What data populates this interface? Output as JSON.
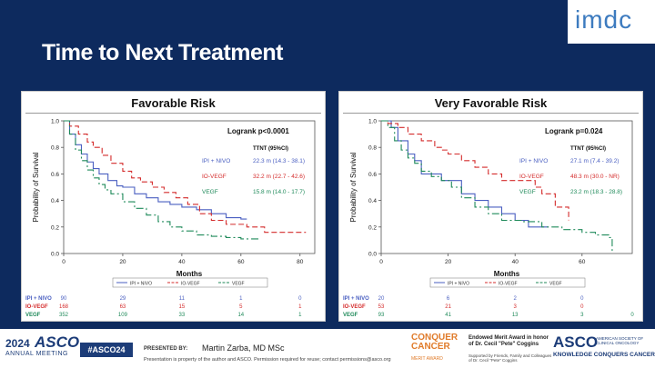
{
  "logo": "imdc",
  "slide_title": "Time to Next Treatment",
  "footer": {
    "year": "2024",
    "asco": "ASCO",
    "meeting": "ANNUAL MEETING",
    "hashtag": "#ASCO24",
    "presented_by": "PRESENTED BY:",
    "presenter": "Martin Zarba, MD MSc",
    "note": "Presentation is property of the author and ASCO. Permission required for reuse; contact permissions@asco.org",
    "conquer": "CONQUER CANCER",
    "conquer_sub": "THE ASCO FOUNDATION",
    "merit": "MERIT AWARD",
    "award_title": "Endowed Merit Award in honor of Dr. Cecil \"Pete\" Coggins",
    "award_sub": "Supported by Friends, Family and Colleagues of Dr. Cecil \"Pete\" Coggins",
    "asco2": "ASCO",
    "society": "AMERICAN SOCIETY OF CLINICAL ONCOLOGY",
    "kcc": "KNOWLEDGE CONQUERS CANCER"
  },
  "colors": {
    "ipi_nivo": "#4a5fc1",
    "io_vegf": "#d42b2b",
    "vegf": "#1f8a5a",
    "band": "#0d2a5e"
  },
  "chart_data": [
    {
      "type": "line",
      "title": "Favorable Risk",
      "xlabel": "Months",
      "ylabel": "Probability of Survival",
      "xlim": [
        0,
        85
      ],
      "ylim": [
        0,
        1
      ],
      "x_ticks": [
        0,
        20,
        40,
        60,
        80
      ],
      "y_ticks": [
        "0.0",
        "0.2",
        "0.4",
        "0.6",
        "0.8",
        "1.0"
      ],
      "logrank": "Logrank p<0.0001",
      "table_header": "TTNT (95%CI)",
      "series": [
        {
          "name": "IPI + NIVO",
          "color": "#4a5fc1",
          "dash": "none",
          "ttnt": "22.3 m (14.3 - 38.1)",
          "points": [
            [
              0,
              1
            ],
            [
              2,
              0.9
            ],
            [
              4,
              0.82
            ],
            [
              6,
              0.75
            ],
            [
              8,
              0.69
            ],
            [
              10,
              0.64
            ],
            [
              12,
              0.6
            ],
            [
              15,
              0.55
            ],
            [
              18,
              0.51
            ],
            [
              20,
              0.5
            ],
            [
              24,
              0.45
            ],
            [
              28,
              0.42
            ],
            [
              32,
              0.39
            ],
            [
              36,
              0.37
            ],
            [
              40,
              0.35
            ],
            [
              45,
              0.33
            ],
            [
              50,
              0.3
            ],
            [
              55,
              0.27
            ],
            [
              60,
              0.26
            ],
            [
              62,
              0.26
            ]
          ]
        },
        {
          "name": "IO-VEGF",
          "color": "#d42b2b",
          "dash": "6,3",
          "ttnt": "32.2 m (22.7 - 42.6)",
          "points": [
            [
              0,
              1
            ],
            [
              2,
              0.96
            ],
            [
              5,
              0.9
            ],
            [
              8,
              0.84
            ],
            [
              10,
              0.8
            ],
            [
              13,
              0.74
            ],
            [
              16,
              0.68
            ],
            [
              20,
              0.62
            ],
            [
              23,
              0.57
            ],
            [
              26,
              0.54
            ],
            [
              30,
              0.5
            ],
            [
              34,
              0.46
            ],
            [
              38,
              0.42
            ],
            [
              42,
              0.37
            ],
            [
              46,
              0.3
            ],
            [
              50,
              0.25
            ],
            [
              55,
              0.22
            ],
            [
              62,
              0.2
            ],
            [
              68,
              0.16
            ],
            [
              82,
              0.16
            ]
          ]
        },
        {
          "name": "VEGF",
          "color": "#1f8a5a",
          "dash": "8,3,2,3",
          "ttnt": "15.8 m (14.0 - 17.7)",
          "points": [
            [
              0,
              1
            ],
            [
              2,
              0.9
            ],
            [
              4,
              0.78
            ],
            [
              6,
              0.7
            ],
            [
              8,
              0.63
            ],
            [
              10,
              0.57
            ],
            [
              12,
              0.52
            ],
            [
              14,
              0.48
            ],
            [
              16,
              0.45
            ],
            [
              20,
              0.39
            ],
            [
              24,
              0.34
            ],
            [
              28,
              0.29
            ],
            [
              32,
              0.24
            ],
            [
              36,
              0.2
            ],
            [
              40,
              0.17
            ],
            [
              45,
              0.14
            ],
            [
              50,
              0.13
            ],
            [
              55,
              0.12
            ],
            [
              60,
              0.11
            ],
            [
              66,
              0.1
            ]
          ]
        }
      ],
      "legend": [
        "IPI + NIVO",
        "IO-VEGF",
        "VEGF"
      ],
      "risk_table": {
        "rows": [
          {
            "label": "IPI + NIVO",
            "color": "#4a5fc1",
            "values": [
              "90",
              "29",
              "11",
              "1",
              "0"
            ]
          },
          {
            "label": "IO-VEGF",
            "color": "#d42b2b",
            "values": [
              "168",
              "63",
              "15",
              "5",
              "1"
            ]
          },
          {
            "label": "VEGF",
            "color": "#1f8a5a",
            "values": [
              "352",
              "109",
              "33",
              "14",
              "1"
            ]
          }
        ]
      }
    },
    {
      "type": "line",
      "title": "Very Favorable Risk",
      "xlabel": "Months",
      "ylabel": "Probability of Survival",
      "xlim": [
        0,
        75
      ],
      "ylim": [
        0,
        1
      ],
      "x_ticks": [
        0,
        20,
        40,
        60
      ],
      "y_ticks": [
        "0.0",
        "0.2",
        "0.4",
        "0.6",
        "0.8",
        "1.0"
      ],
      "logrank": "Logrank p=0.024",
      "table_header": "TTNT (95%CI)",
      "series": [
        {
          "name": "IPI + NIVO",
          "color": "#4a5fc1",
          "dash": "none",
          "ttnt": "27.1 m (7.4 - 39.2)",
          "points": [
            [
              0,
              1
            ],
            [
              3,
              0.95
            ],
            [
              5,
              0.85
            ],
            [
              8,
              0.75
            ],
            [
              10,
              0.7
            ],
            [
              12,
              0.6
            ],
            [
              16,
              0.6
            ],
            [
              18,
              0.55
            ],
            [
              20,
              0.55
            ],
            [
              24,
              0.45
            ],
            [
              27,
              0.45
            ],
            [
              28,
              0.4
            ],
            [
              32,
              0.35
            ],
            [
              36,
              0.3
            ],
            [
              40,
              0.25
            ],
            [
              44,
              0.2
            ],
            [
              50,
              0.2
            ]
          ]
        },
        {
          "name": "IO-VEGF",
          "color": "#d42b2b",
          "dash": "6,3",
          "ttnt": "48.3 m (30.0 - NR)",
          "points": [
            [
              0,
              1
            ],
            [
              2,
              0.98
            ],
            [
              5,
              0.95
            ],
            [
              8,
              0.9
            ],
            [
              12,
              0.85
            ],
            [
              16,
              0.8
            ],
            [
              18,
              0.78
            ],
            [
              20,
              0.75
            ],
            [
              24,
              0.7
            ],
            [
              28,
              0.65
            ],
            [
              32,
              0.6
            ],
            [
              36,
              0.55
            ],
            [
              40,
              0.55
            ],
            [
              44,
              0.55
            ],
            [
              46,
              0.5
            ],
            [
              48,
              0.45
            ],
            [
              52,
              0.35
            ],
            [
              55,
              0.35
            ],
            [
              56,
              0.25
            ]
          ]
        },
        {
          "name": "VEGF",
          "color": "#1f8a5a",
          "dash": "8,3,2,3",
          "ttnt": "23.2 m (18.3 - 28.8)",
          "points": [
            [
              0,
              1
            ],
            [
              2,
              0.95
            ],
            [
              4,
              0.85
            ],
            [
              6,
              0.78
            ],
            [
              8,
              0.72
            ],
            [
              10,
              0.68
            ],
            [
              12,
              0.62
            ],
            [
              15,
              0.58
            ],
            [
              18,
              0.55
            ],
            [
              21,
              0.5
            ],
            [
              24,
              0.42
            ],
            [
              28,
              0.35
            ],
            [
              32,
              0.3
            ],
            [
              36,
              0.25
            ],
            [
              42,
              0.24
            ],
            [
              48,
              0.2
            ],
            [
              54,
              0.18
            ],
            [
              60,
              0.16
            ],
            [
              64,
              0.14
            ],
            [
              68,
              0.12
            ],
            [
              69,
              0.12
            ],
            [
              69,
              0.02
            ]
          ]
        }
      ],
      "legend": [
        "IPI + NIVO",
        "IO-VEGF",
        "VEGF"
      ],
      "risk_table": {
        "rows": [
          {
            "label": "IPI + NIVO",
            "color": "#4a5fc1",
            "values": [
              "20",
              "6",
              "2",
              "0",
              ""
            ]
          },
          {
            "label": "IO-VEGF",
            "color": "#d42b2b",
            "values": [
              "53",
              "21",
              "3",
              "0",
              ""
            ]
          },
          {
            "label": "VEGF",
            "color": "#1f8a5a",
            "values": [
              "93",
              "41",
              "13",
              "3",
              "0"
            ]
          }
        ]
      }
    }
  ]
}
